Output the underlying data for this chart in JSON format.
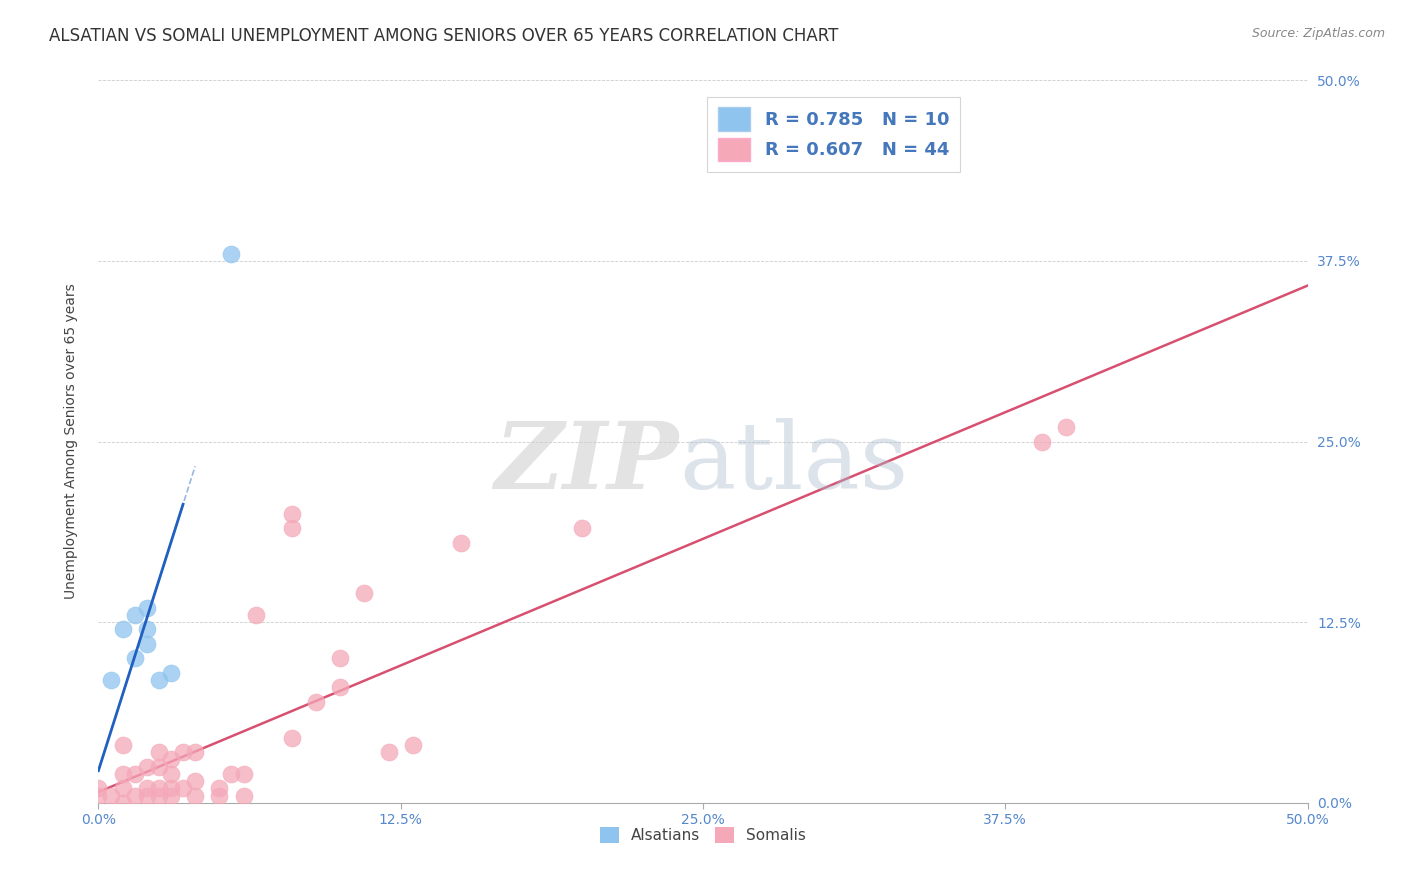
{
  "title": "ALSATIAN VS SOMALI UNEMPLOYMENT AMONG SENIORS OVER 65 YEARS CORRELATION CHART",
  "source": "Source: ZipAtlas.com",
  "ylabel": "Unemployment Among Seniors over 65 years",
  "xlim": [
    0.0,
    0.5
  ],
  "ylim": [
    0.0,
    0.5
  ],
  "xtick_vals": [
    0.0,
    0.125,
    0.25,
    0.375,
    0.5
  ],
  "xtick_labels": [
    "0.0%",
    "12.5%",
    "25.0%",
    "37.5%",
    "50.0%"
  ],
  "ytick_vals": [
    0.0,
    0.125,
    0.25,
    0.375,
    0.5
  ],
  "ytick_labels_right": [
    "0.0%",
    "12.5%",
    "25.0%",
    "37.5%",
    "50.0%"
  ],
  "legend_alsatian_r": "R = 0.785",
  "legend_alsatian_n": "N = 10",
  "legend_somali_r": "R = 0.607",
  "legend_somali_n": "N = 44",
  "alsatian_color": "#8FC4EE",
  "somali_color": "#F4A8B8",
  "alsatian_line_color": "#2060C0",
  "somali_line_color": "#D85070",
  "background_color": "#FFFFFF",
  "alsatian_x": [
    0.005,
    0.01,
    0.015,
    0.015,
    0.02,
    0.02,
    0.02,
    0.025,
    0.03,
    0.055
  ],
  "alsatian_y": [
    0.085,
    0.12,
    0.1,
    0.13,
    0.11,
    0.12,
    0.135,
    0.085,
    0.09,
    0.38
  ],
  "somali_x": [
    0.0,
    0.0,
    0.005,
    0.01,
    0.01,
    0.01,
    0.01,
    0.015,
    0.015,
    0.02,
    0.02,
    0.02,
    0.025,
    0.025,
    0.025,
    0.025,
    0.03,
    0.03,
    0.03,
    0.03,
    0.035,
    0.035,
    0.04,
    0.04,
    0.04,
    0.05,
    0.05,
    0.055,
    0.06,
    0.06,
    0.065,
    0.08,
    0.08,
    0.08,
    0.09,
    0.1,
    0.1,
    0.11,
    0.12,
    0.13,
    0.15,
    0.2,
    0.39,
    0.4
  ],
  "somali_y": [
    0.005,
    0.01,
    0.005,
    0.0,
    0.01,
    0.02,
    0.04,
    0.005,
    0.02,
    0.005,
    0.01,
    0.025,
    0.005,
    0.01,
    0.025,
    0.035,
    0.005,
    0.01,
    0.02,
    0.03,
    0.01,
    0.035,
    0.005,
    0.015,
    0.035,
    0.005,
    0.01,
    0.02,
    0.005,
    0.02,
    0.13,
    0.19,
    0.2,
    0.045,
    0.07,
    0.08,
    0.1,
    0.145,
    0.035,
    0.04,
    0.18,
    0.19,
    0.25,
    0.26
  ],
  "title_fontsize": 12,
  "axis_label_fontsize": 10,
  "tick_fontsize": 10,
  "legend_fontsize": 13
}
